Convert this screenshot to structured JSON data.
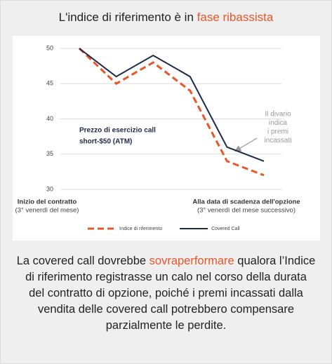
{
  "chart_data": {
    "type": "line",
    "title": {
      "text": "L'indice di riferimento è in",
      "highlight": "fase ribassista"
    },
    "categories": [
      null,
      null,
      null,
      null,
      null,
      null
    ],
    "series": [
      {
        "name": "Indice di riferimento",
        "color": "#e8562a",
        "dashed": true,
        "values": [
          50,
          45,
          48,
          44,
          34,
          32
        ]
      },
      {
        "name": "Covered Call",
        "color": "#1b2a47",
        "dashed": false,
        "values": [
          50,
          46,
          49,
          46,
          36,
          34
        ]
      }
    ],
    "ylim": [
      30,
      50
    ],
    "yticks": [
      30,
      35,
      40,
      45,
      50
    ],
    "grid": true,
    "annotations": {
      "strike": [
        "Prezzo di esercizio call",
        "short-$50 (ATM)"
      ],
      "gap": [
        "Il divario",
        "indica",
        "i premi",
        "incassati"
      ],
      "x_start": {
        "title": "Inizio del contratto",
        "note": "(3° venerdì del mese)"
      },
      "x_end": {
        "title": "Alla data di scadenza dell'opzione",
        "note": "(3° venerdì del mese successivo)"
      }
    },
    "footer": {
      "before": "La covered call dovrebbe",
      "highlight": "sovraperformare",
      "after": "qualora l’Indice di riferimento registrasse un calo nel corso della durata del contratto di opzione, poiché i premi incassati dalla vendita delle covered call potrebbero compensare parzialmente le perdite."
    }
  }
}
